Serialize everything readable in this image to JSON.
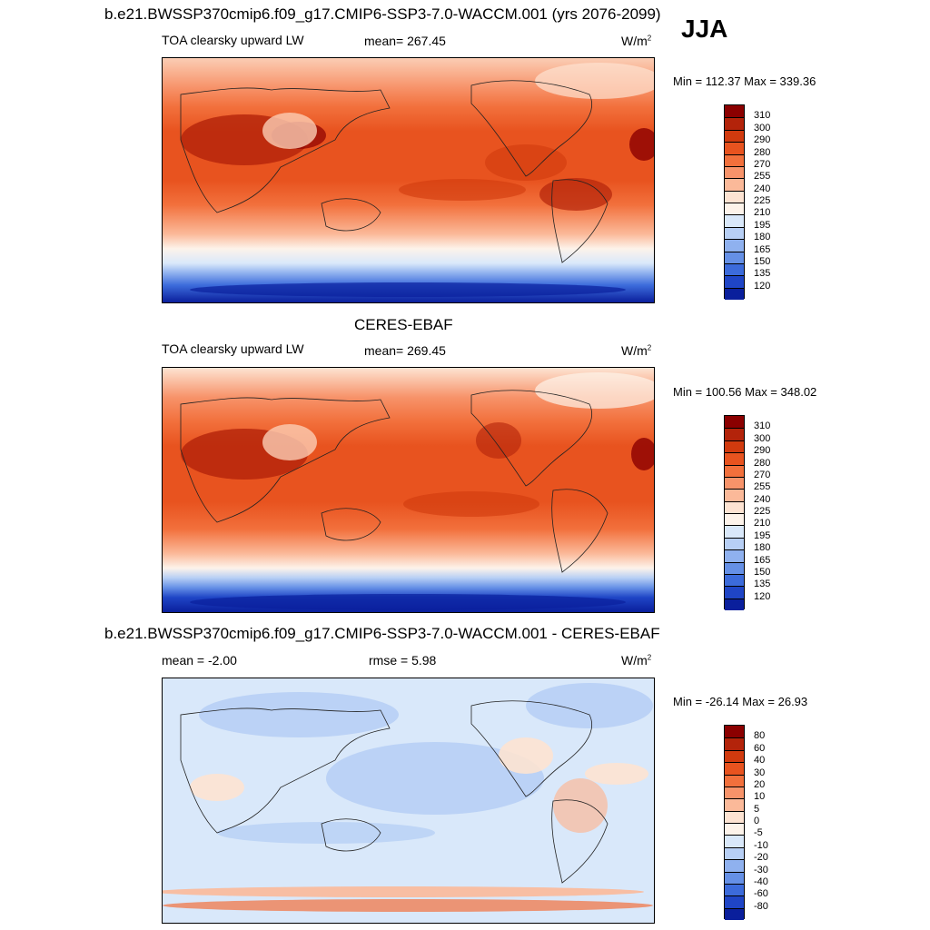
{
  "season": "JJA",
  "panels": [
    {
      "title": "b.e21.BWSSP370cmip6.f09_g17.CMIP6-SSP3-7.0-WACCM.001 (yrs 2076-2099)",
      "left_text": "TOA clearsky upward LW",
      "center_text": "mean= 267.45",
      "units": "W/m",
      "units_sup": "2",
      "minmax": "Min = 112.37 Max = 339.36"
    },
    {
      "title": "CERES-EBAF",
      "left_text": "TOA clearsky upward LW",
      "center_text": "mean= 269.45",
      "units": "W/m",
      "units_sup": "2",
      "minmax": "Min = 100.56 Max = 348.02"
    },
    {
      "title": "b.e21.BWSSP370cmip6.f09_g17.CMIP6-SSP3-7.0-WACCM.001 - CERES-EBAF",
      "left_text": "mean =  -2.00",
      "center_text": "rmse =   5.98",
      "units": "W/m",
      "units_sup": "2",
      "minmax": "Min = -26.14 Max =  26.93"
    }
  ],
  "chart_data": [
    {
      "type": "heatmap",
      "title": "b.e21.BWSSP370cmip6.f09_g17.CMIP6-SSP3-7.0-WACCM.001 (yrs 2076-2099)",
      "variable": "TOA clearsky upward LW",
      "mean": 267.45,
      "min": 112.37,
      "max": 339.36,
      "units": "W/m2",
      "colorbar_levels": [
        310,
        300,
        290,
        280,
        270,
        255,
        240,
        225,
        210,
        195,
        180,
        165,
        150,
        135,
        120
      ],
      "colors": [
        "#8b0000",
        "#b3230a",
        "#d13a0e",
        "#e8531f",
        "#f2703c",
        "#f7936a",
        "#fbb999",
        "#fde3d2",
        "#fdf3ea",
        "#d9e8fa",
        "#b7cff5",
        "#8fb1ef",
        "#6590e6",
        "#3c6bdb",
        "#1f45c6",
        "#0a1f9c"
      ]
    },
    {
      "type": "heatmap",
      "title": "CERES-EBAF",
      "variable": "TOA clearsky upward LW",
      "mean": 269.45,
      "min": 100.56,
      "max": 348.02,
      "units": "W/m2",
      "colorbar_levels": [
        310,
        300,
        290,
        280,
        270,
        255,
        240,
        225,
        210,
        195,
        180,
        165,
        150,
        135,
        120
      ],
      "colors": [
        "#8b0000",
        "#b3230a",
        "#d13a0e",
        "#e8531f",
        "#f2703c",
        "#f7936a",
        "#fbb999",
        "#fde3d2",
        "#fdf3ea",
        "#d9e8fa",
        "#b7cff5",
        "#8fb1ef",
        "#6590e6",
        "#3c6bdb",
        "#1f45c6",
        "#0a1f9c"
      ]
    },
    {
      "type": "heatmap",
      "title": "b.e21.BWSSP370cmip6.f09_g17.CMIP6-SSP3-7.0-WACCM.001 - CERES-EBAF",
      "mean": -2.0,
      "rmse": 5.98,
      "min": -26.14,
      "max": 26.93,
      "units": "W/m2",
      "colorbar_levels": [
        80,
        60,
        40,
        30,
        20,
        10,
        5,
        0,
        -5,
        -10,
        -20,
        -30,
        -40,
        -60,
        -80
      ],
      "colors": [
        "#8b0000",
        "#b3230a",
        "#d13a0e",
        "#e8531f",
        "#f2703c",
        "#f7936a",
        "#fbb999",
        "#fde3d2",
        "#fdf3ea",
        "#d9e8fa",
        "#b7cff5",
        "#8fb1ef",
        "#6590e6",
        "#3c6bdb",
        "#1f45c6",
        "#0a1f9c"
      ]
    }
  ]
}
